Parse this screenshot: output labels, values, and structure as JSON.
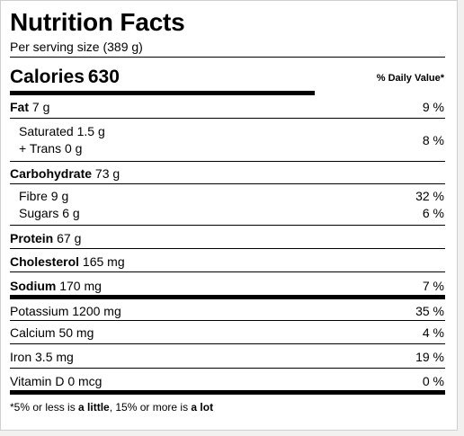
{
  "title": "Nutrition Facts",
  "serving": "Per serving size (389 g)",
  "calories": {
    "label": "Calories",
    "value": "630"
  },
  "dv_header": "% Daily Value*",
  "fat": {
    "label": "Fat",
    "amount": "7 g",
    "pct": "9 %"
  },
  "saturated": {
    "label": "Saturated 1.5 g"
  },
  "trans": {
    "label": "+ Trans 0 g"
  },
  "sat_trans_pct": "8 %",
  "carbohydrate": {
    "label": "Carbohydrate",
    "amount": "73 g"
  },
  "fibre": {
    "label": "Fibre 9 g",
    "pct": "32 %"
  },
  "sugars": {
    "label": "Sugars 6 g",
    "pct": "6 %"
  },
  "protein": {
    "label": "Protein",
    "amount": "67 g"
  },
  "cholesterol": {
    "label": "Cholesterol",
    "amount": "165 mg"
  },
  "sodium": {
    "label": "Sodium",
    "amount": "170 mg",
    "pct": "7 %"
  },
  "potassium": {
    "label": "Potassium 1200 mg",
    "pct": "35 %"
  },
  "calcium": {
    "label": "Calcium 50 mg",
    "pct": "4 %"
  },
  "iron": {
    "label": "Iron 3.5 mg",
    "pct": "19 %"
  },
  "vitamin_d": {
    "label": "Vitamin D 0 mcg",
    "pct": "0 %"
  },
  "footnote": {
    "part1": "*5% or less is ",
    "little": "a little",
    "part2": ", 15% or more is ",
    "lot": "a lot"
  }
}
